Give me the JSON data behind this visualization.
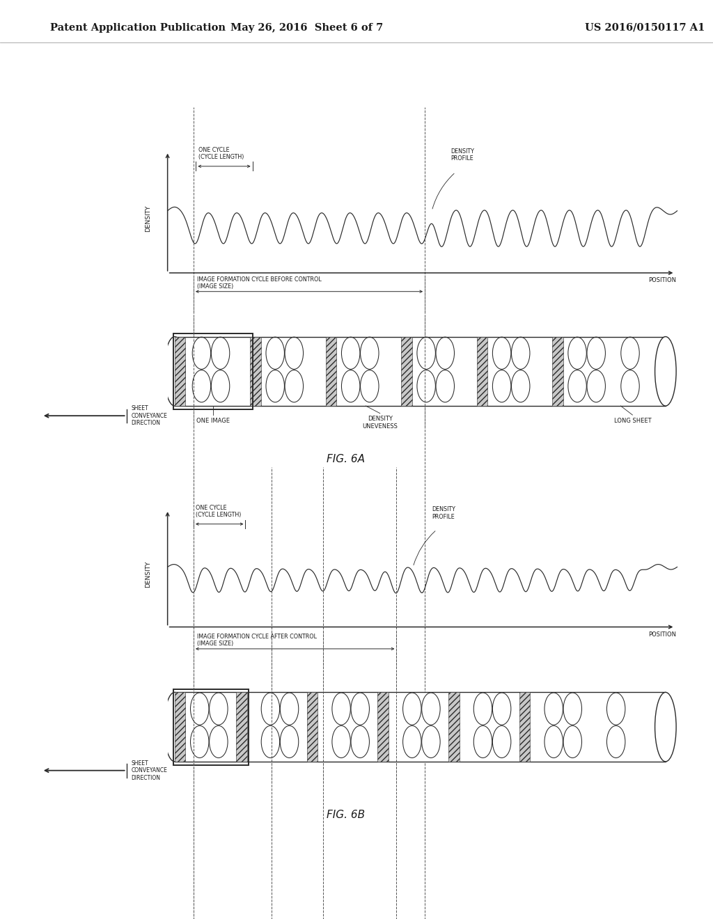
{
  "bg_color": "#ffffff",
  "text_color": "#1a1a1a",
  "header_left": "Patent Application Publication",
  "header_center": "May 26, 2016  Sheet 6 of 7",
  "header_right": "US 2016/0150117 A1",
  "fig6a_label": "FIG. 6A",
  "fig6b_label": "FIG. 6B",
  "label_density": "DENSITY",
  "label_position": "POSITION",
  "label_one_cycle": "ONE CYCLE\n(CYCLE LENGTH)",
  "label_density_profile": "DENSITY\nPROFILE",
  "label_image_formation_before": "IMAGE FORMATION CYCLE BEFORE CONTROL\n(IMAGE SIZE)",
  "label_image_formation_after": "IMAGE FORMATION CYCLE AFTER CONTROL\n(IMAGE SIZE)",
  "label_one_image": "ONE IMAGE",
  "label_density_unevenness": "DENSITY\nUNEVENESS",
  "label_long_sheet": "LONG SHEET",
  "label_sheet_conveyance": "SHEET\nCONVEYANCE\nDIRECTION",
  "line_color": "#2a2a2a",
  "dashed_color": "#555555"
}
